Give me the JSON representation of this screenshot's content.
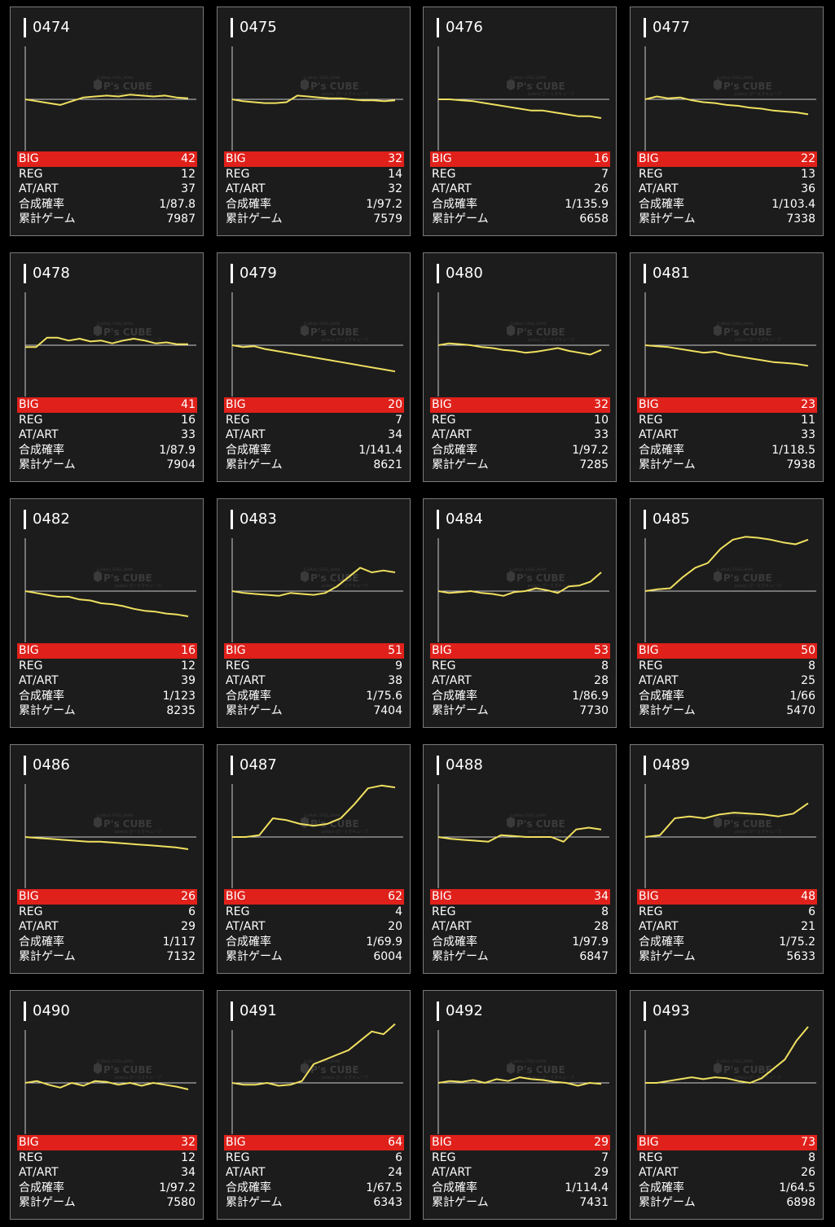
{
  "labels": {
    "big": "BIG",
    "reg": "REG",
    "at": "AT/ART",
    "prob": "合成確率",
    "games": "累計ゲーム"
  },
  "watermark": {
    "top": "FujiMatic STEEL JAPAN",
    "brand": "P's CUBE",
    "sub": "pslecs ぴーえすキューブ"
  },
  "colors": {
    "line": "#f0e060",
    "big_bg": "#e0201a",
    "card_bg": "#1c1c1c"
  },
  "machines": [
    {
      "id": "0474",
      "big": "42",
      "reg": "12",
      "at": "37",
      "prob": "1/87.8",
      "games": "7987",
      "graph": [
        0,
        -2,
        -4,
        -6,
        -2,
        2,
        3,
        4,
        3,
        5,
        4,
        3,
        4,
        2,
        1
      ]
    },
    {
      "id": "0475",
      "big": "32",
      "reg": "14",
      "at": "32",
      "prob": "1/97.2",
      "games": "7579",
      "graph": [
        0,
        -2,
        -3,
        -4,
        -4,
        -3,
        4,
        3,
        2,
        1,
        1,
        0,
        -1,
        -1,
        -2,
        -1
      ]
    },
    {
      "id": "0476",
      "big": "16",
      "reg": "7",
      "at": "26",
      "prob": "1/135.9",
      "games": "6658",
      "graph": [
        0,
        0,
        -1,
        -2,
        -4,
        -6,
        -8,
        -10,
        -12,
        -12,
        -14,
        -16,
        -18,
        -18,
        -20
      ]
    },
    {
      "id": "0477",
      "big": "22",
      "reg": "13",
      "at": "36",
      "prob": "1/103.4",
      "games": "7338",
      "graph": [
        0,
        3,
        1,
        2,
        -1,
        -3,
        -4,
        -6,
        -7,
        -9,
        -10,
        -12,
        -13,
        -14,
        -16
      ]
    },
    {
      "id": "0478",
      "big": "41",
      "reg": "16",
      "at": "33",
      "prob": "1/87.9",
      "games": "7904",
      "graph": [
        -2,
        -2,
        8,
        8,
        5,
        7,
        4,
        5,
        2,
        5,
        7,
        5,
        2,
        3,
        1,
        1
      ]
    },
    {
      "id": "0479",
      "big": "20",
      "reg": "7",
      "at": "34",
      "prob": "1/141.4",
      "games": "8621",
      "graph": [
        0,
        -2,
        -1,
        -4,
        -6,
        -8,
        -10,
        -12,
        -14,
        -16,
        -18,
        -20,
        -22,
        -24,
        -26,
        -28
      ]
    },
    {
      "id": "0480",
      "big": "32",
      "reg": "10",
      "at": "33",
      "prob": "1/97.2",
      "games": "7285",
      "graph": [
        0,
        2,
        1,
        0,
        -2,
        -3,
        -5,
        -6,
        -8,
        -7,
        -5,
        -3,
        -6,
        -8,
        -10,
        -5
      ]
    },
    {
      "id": "0481",
      "big": "23",
      "reg": "11",
      "at": "33",
      "prob": "1/118.5",
      "games": "7938",
      "graph": [
        0,
        -1,
        -2,
        -4,
        -6,
        -8,
        -7,
        -10,
        -12,
        -14,
        -16,
        -18,
        -19,
        -20,
        -22
      ]
    },
    {
      "id": "0482",
      "big": "16",
      "reg": "12",
      "at": "39",
      "prob": "1/123",
      "games": "8235",
      "graph": [
        0,
        -2,
        -4,
        -6,
        -6,
        -9,
        -10,
        -13,
        -14,
        -16,
        -19,
        -21,
        -22,
        -24,
        -25,
        -27
      ]
    },
    {
      "id": "0483",
      "big": "51",
      "reg": "9",
      "at": "38",
      "prob": "1/75.6",
      "games": "7404",
      "graph": [
        0,
        -2,
        -3,
        -4,
        -5,
        -2,
        -3,
        -4,
        -2,
        5,
        15,
        25,
        20,
        22,
        20
      ]
    },
    {
      "id": "0484",
      "big": "53",
      "reg": "8",
      "at": "28",
      "prob": "1/86.9",
      "games": "7730",
      "graph": [
        0,
        -2,
        -1,
        0,
        -2,
        -3,
        -5,
        -1,
        0,
        3,
        1,
        -2,
        5,
        6,
        10,
        20
      ]
    },
    {
      "id": "0485",
      "big": "50",
      "reg": "8",
      "at": "25",
      "prob": "1/66",
      "games": "5470",
      "graph": [
        0,
        2,
        3,
        15,
        25,
        30,
        45,
        55,
        58,
        57,
        55,
        52,
        50,
        55
      ]
    },
    {
      "id": "0486",
      "big": "26",
      "reg": "6",
      "at": "29",
      "prob": "1/117",
      "games": "7132",
      "graph": [
        0,
        -1,
        -2,
        -3,
        -4,
        -5,
        -5,
        -6,
        -7,
        -8,
        -9,
        -10,
        -11,
        -13
      ]
    },
    {
      "id": "0487",
      "big": "62",
      "reg": "4",
      "at": "20",
      "prob": "1/69.9",
      "games": "6004",
      "graph": [
        0,
        0,
        2,
        20,
        18,
        14,
        12,
        14,
        20,
        35,
        52,
        55,
        53
      ]
    },
    {
      "id": "0488",
      "big": "34",
      "reg": "8",
      "at": "28",
      "prob": "1/97.9",
      "games": "6847",
      "graph": [
        0,
        -2,
        -3,
        -4,
        -5,
        2,
        1,
        0,
        0,
        0,
        -5,
        8,
        10,
        8
      ]
    },
    {
      "id": "0489",
      "big": "48",
      "reg": "6",
      "at": "21",
      "prob": "1/75.2",
      "games": "5633",
      "graph": [
        0,
        2,
        20,
        22,
        20,
        24,
        26,
        25,
        24,
        22,
        25,
        36
      ]
    },
    {
      "id": "0490",
      "big": "32",
      "reg": "12",
      "at": "34",
      "prob": "1/97.2",
      "games": "7580",
      "graph": [
        0,
        2,
        -2,
        -5,
        0,
        -3,
        2,
        1,
        -2,
        0,
        -3,
        0,
        -2,
        -4,
        -7
      ]
    },
    {
      "id": "0491",
      "big": "64",
      "reg": "6",
      "at": "24",
      "prob": "1/67.5",
      "games": "6343",
      "graph": [
        0,
        -2,
        -2,
        0,
        -3,
        -2,
        2,
        20,
        25,
        30,
        35,
        45,
        55,
        52,
        63
      ]
    },
    {
      "id": "0492",
      "big": "29",
      "reg": "7",
      "at": "29",
      "prob": "1/114.4",
      "games": "7431",
      "graph": [
        0,
        2,
        1,
        3,
        0,
        4,
        2,
        6,
        4,
        3,
        1,
        0,
        -3,
        0,
        -1
      ]
    },
    {
      "id": "0493",
      "big": "73",
      "reg": "8",
      "at": "26",
      "prob": "1/64.5",
      "games": "6898",
      "graph": [
        0,
        0,
        2,
        4,
        6,
        4,
        6,
        5,
        2,
        0,
        5,
        15,
        25,
        45,
        60
      ]
    }
  ]
}
